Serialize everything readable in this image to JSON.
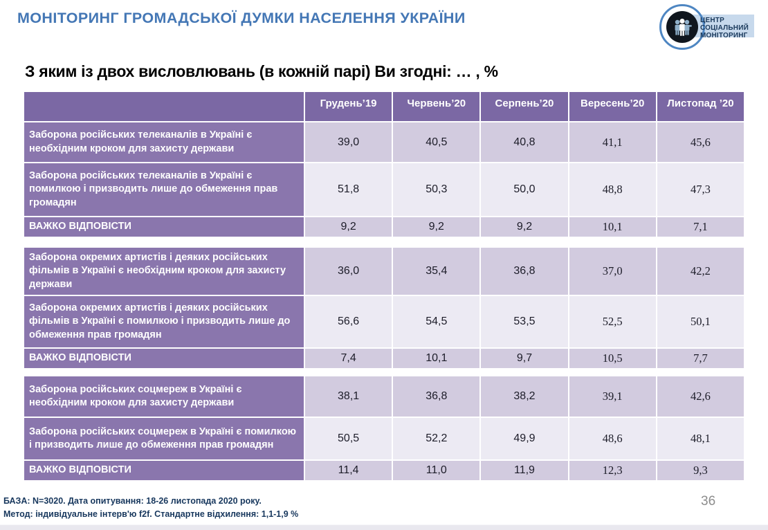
{
  "header": {
    "title": "МОНІТОРИНГ ГРОМАДСЬКОЇ ДУМКИ НАСЕЛЕННЯ УКРАЇНИ",
    "logo": {
      "lines": [
        "ЦЕНТР",
        "СОЦІАЛЬНИЙ",
        "МОНІТОРИНГ"
      ]
    }
  },
  "question_title": "З яким із двох висловлювань (в кожній парі) Ви згодні: … , %",
  "columns": [
    "Грудень’19",
    "Червень’20",
    "Серпень’20",
    "Вересень’20",
    "Листопад ’20"
  ],
  "tables": [
    {
      "rows": [
        {
          "label": "Заборона російських телеканалів в Україні є необхідним кроком для захисту держави",
          "values": [
            "39,0",
            "40,5",
            "40,8",
            "41,1",
            "45,6"
          ]
        },
        {
          "label": "Заборона російських телеканалів в Україні є помилкою і призводить лише до обмеження прав громадян",
          "values": [
            "51,8",
            "50,3",
            "50,0",
            "48,8",
            "47,3"
          ]
        },
        {
          "label": "ВАЖКО ВІДПОВІСТИ",
          "values": [
            "9,2",
            "9,2",
            "9,2",
            "10,1",
            "7,1"
          ]
        }
      ]
    },
    {
      "rows": [
        {
          "label": "Заборона окремих артистів і деяких російських фільмів в Україні є необхідним кроком для захисту держави",
          "values": [
            "36,0",
            "35,4",
            "36,8",
            "37,0",
            "42,2"
          ]
        },
        {
          "label": "Заборона окремих артистів і деяких російських фільмів в Україні є помилкою і призводить лише до обмеження прав громадян",
          "values": [
            "56,6",
            "54,5",
            "53,5",
            "52,5",
            "50,1"
          ]
        },
        {
          "label": "ВАЖКО ВІДПОВІСТИ",
          "values": [
            "7,4",
            "10,1",
            "9,7",
            "10,5",
            "7,7"
          ]
        }
      ]
    },
    {
      "rows": [
        {
          "label": "Заборона російських соцмереж в Україні є необхідним кроком для захисту держави",
          "values": [
            "38,1",
            "36,8",
            "38,2",
            "39,1",
            "42,6"
          ]
        },
        {
          "label": "Заборона російських соцмереж в Україні є помилкою і призводить лише до обмеження прав громадян",
          "values": [
            "50,5",
            "52,2",
            "49,9",
            "48,6",
            "48,1"
          ]
        },
        {
          "label": "ВАЖКО ВІДПОВІСТИ",
          "values": [
            "11,4",
            "11,0",
            "11,9",
            "12,3",
            "9,3"
          ]
        }
      ]
    }
  ],
  "footer": {
    "line1": "БАЗА: N=3020. Дата опитування: 18-26 листопада 2020 року.",
    "line2": "Метод: індивідуальне інтерв'ю f2f. Стандартне відхилення: 1,1-1,9 %",
    "page_number": "36"
  },
  "colors": {
    "header_blue": "#4477B5",
    "table_header_purple": "#7B68A4",
    "row_label_purple": "#8A76AD",
    "band_dark": "#D2CBDF",
    "band_light": "#ECEAF3",
    "footer_navy": "#17375D",
    "logo_ring_blue": "#4E86C2",
    "logo_band_blue": "#C7D9EC"
  }
}
